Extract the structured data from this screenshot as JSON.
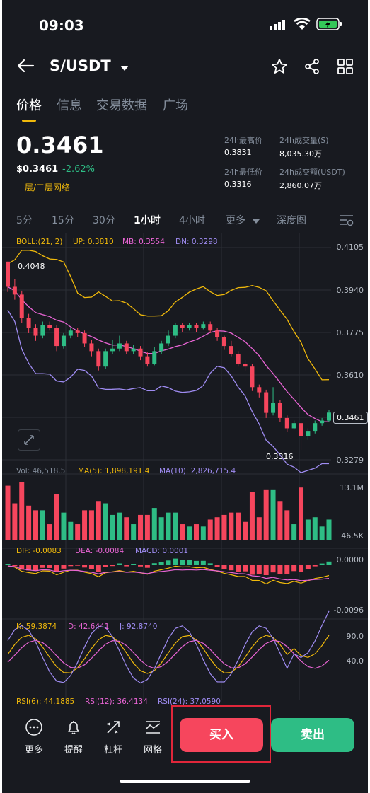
{
  "status_bar": {
    "time": "09:03"
  },
  "header": {
    "pair": "S/USDT"
  },
  "tabs": [
    "价格",
    "信息",
    "交易数据",
    "广场"
  ],
  "price": {
    "last": "0.3461",
    "usd": "$0.3461",
    "change": "-2.62%",
    "network": "一层/二层网络",
    "high_label": "24h最高价",
    "high": "0.3831",
    "low_label": "24h最低价",
    "low": "0.3316",
    "vol_label": "24h成交量(S)",
    "vol": "8,035.30万",
    "turnover_label": "24h成交额(USDT)",
    "turnover": "2,860.07万"
  },
  "timeframes": [
    "5分",
    "15分",
    "30分",
    "1小时",
    "4小时",
    "更多",
    "深度图"
  ],
  "active_timeframe": "1小时",
  "indicators": {
    "boll": {
      "name": "BOLL:(21, 2)",
      "up": "UP: 0.3810",
      "mb": "MB: 0.3554",
      "dn": "DN: 0.3298"
    },
    "vol": {
      "vol": "Vol: 46,518.5",
      "ma5": "MA(5): 1,898,191.4",
      "ma10": "MA(10): 2,826,715.4"
    },
    "macd": {
      "dif": "DIF: -0.0083",
      "dea": "DEA: -0.0084",
      "macd": "MACD: 0.0001"
    },
    "kdj": {
      "k": "K: 59.3874",
      "d": "D: 42.6441",
      "j": "J: 92.8740"
    },
    "rsi": {
      "rsi6": "RSI(6): 44.1885",
      "rsi12": "RSI(12): 36.4134",
      "rsi24": "RSI(24): 37.0590"
    }
  },
  "chart_data": {
    "type": "candlestick",
    "price_axis": [
      "0.4105",
      "0.3940",
      "0.3775",
      "0.3610",
      "0.3279"
    ],
    "last_price_label": "0.3461",
    "high_marker": "0.4048",
    "low_marker": "0.3316",
    "ylim": [
      0.325,
      0.413
    ],
    "candles": [
      [
        0.4048,
        0.395,
        0.4048,
        0.393
      ],
      [
        0.395,
        0.392,
        0.398,
        0.39
      ],
      [
        0.392,
        0.383,
        0.3935,
        0.381
      ],
      [
        0.383,
        0.379,
        0.3845,
        0.377
      ],
      [
        0.379,
        0.376,
        0.3805,
        0.374
      ],
      [
        0.376,
        0.38,
        0.3815,
        0.375
      ],
      [
        0.38,
        0.379,
        0.3815,
        0.378
      ],
      [
        0.379,
        0.372,
        0.38,
        0.37
      ],
      [
        0.372,
        0.376,
        0.377,
        0.371
      ],
      [
        0.376,
        0.378,
        0.379,
        0.375
      ],
      [
        0.378,
        0.377,
        0.379,
        0.3755
      ],
      [
        0.377,
        0.373,
        0.378,
        0.3715
      ],
      [
        0.373,
        0.37,
        0.3745,
        0.368
      ],
      [
        0.37,
        0.364,
        0.371,
        0.3625
      ],
      [
        0.364,
        0.37,
        0.371,
        0.363
      ],
      [
        0.37,
        0.371,
        0.3745,
        0.369
      ],
      [
        0.371,
        0.373,
        0.376,
        0.37
      ],
      [
        0.373,
        0.37,
        0.374,
        0.369
      ],
      [
        0.37,
        0.371,
        0.3725,
        0.369
      ],
      [
        0.371,
        0.368,
        0.372,
        0.3665
      ],
      [
        0.368,
        0.365,
        0.3695,
        0.364
      ],
      [
        0.365,
        0.37,
        0.3715,
        0.3645
      ],
      [
        0.37,
        0.373,
        0.374,
        0.369
      ],
      [
        0.373,
        0.376,
        0.378,
        0.372
      ],
      [
        0.376,
        0.38,
        0.381,
        0.375
      ],
      [
        0.38,
        0.379,
        0.381,
        0.3775
      ],
      [
        0.379,
        0.38,
        0.381,
        0.378
      ],
      [
        0.38,
        0.379,
        0.381,
        0.3775
      ],
      [
        0.379,
        0.3805,
        0.3815,
        0.3785
      ],
      [
        0.3805,
        0.378,
        0.3815,
        0.377
      ],
      [
        0.378,
        0.3755,
        0.379,
        0.374
      ],
      [
        0.3755,
        0.372,
        0.376,
        0.3705
      ],
      [
        0.372,
        0.369,
        0.374,
        0.368
      ],
      [
        0.369,
        0.365,
        0.37,
        0.364
      ],
      [
        0.365,
        0.364,
        0.3665,
        0.3625
      ],
      [
        0.364,
        0.356,
        0.365,
        0.3545
      ],
      [
        0.356,
        0.354,
        0.357,
        0.352
      ],
      [
        0.354,
        0.346,
        0.355,
        0.344
      ],
      [
        0.346,
        0.35,
        0.356,
        0.345
      ],
      [
        0.35,
        0.344,
        0.351,
        0.3425
      ],
      [
        0.344,
        0.34,
        0.345,
        0.3385
      ],
      [
        0.34,
        0.342,
        0.343,
        0.3395
      ],
      [
        0.342,
        0.337,
        0.343,
        0.3316
      ],
      [
        0.337,
        0.339,
        0.34,
        0.3355
      ],
      [
        0.339,
        0.342,
        0.343,
        0.338
      ],
      [
        0.342,
        0.343,
        0.344,
        0.341
      ],
      [
        0.343,
        0.3461,
        0.347,
        0.3425
      ]
    ],
    "vol_axis": [
      "13.1M",
      "46.5K"
    ],
    "macd_axis": [
      "0.0000",
      "-0.0096"
    ],
    "kdj_axis": [
      "90.0",
      "40.0"
    ]
  },
  "bottom_bar": {
    "items": [
      {
        "label": "更多",
        "icon": "more-icon"
      },
      {
        "label": "提醒",
        "icon": "bell-icon"
      },
      {
        "label": "杠杆",
        "icon": "leverage-icon"
      },
      {
        "label": "网格",
        "icon": "grid-trading-icon"
      }
    ],
    "buy": "买入",
    "sell": "卖出"
  },
  "colors": {
    "up": "#2ebd85",
    "down": "#f6465d",
    "accent": "#f0b90b",
    "bg": "#181a20"
  }
}
